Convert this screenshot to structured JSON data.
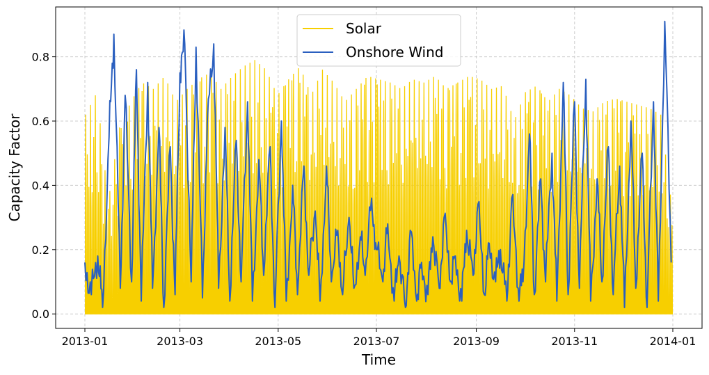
{
  "chart_data": {
    "type": "line",
    "title": "",
    "xlabel": "Time",
    "ylabel": "Capacity Factor",
    "x_range": [
      "2013-01-01",
      "2014-01-01"
    ],
    "ylim": [
      -0.045,
      0.955
    ],
    "grid": true,
    "legend_position": "top-center",
    "x_ticks": [
      {
        "date": "2013-01-01",
        "label": "2013-01"
      },
      {
        "date": "2013-03-01",
        "label": "2013-03"
      },
      {
        "date": "2013-05-01",
        "label": "2013-05"
      },
      {
        "date": "2013-07-01",
        "label": "2013-07"
      },
      {
        "date": "2013-09-01",
        "label": "2013-09"
      },
      {
        "date": "2013-11-01",
        "label": "2013-11"
      },
      {
        "date": "2014-01-01",
        "label": "2014-01"
      }
    ],
    "y_ticks": [
      {
        "value": 0.0,
        "label": "0.0"
      },
      {
        "value": 0.2,
        "label": "0.2"
      },
      {
        "value": 0.4,
        "label": "0.4"
      },
      {
        "value": 0.6,
        "label": "0.6"
      },
      {
        "value": 0.8,
        "label": "0.8"
      }
    ],
    "series": [
      {
        "name": "Solar",
        "color": "#f7cf00",
        "note_daily_peak_value": "hourly series; each day rises from 0 to the daily peak and back to 0",
        "x": [
          "2013-01-01",
          "2013-01-08",
          "2013-01-15",
          "2013-01-22",
          "2013-01-29",
          "2013-02-05",
          "2013-02-12",
          "2013-02-19",
          "2013-02-26",
          "2013-03-05",
          "2013-03-12",
          "2013-03-19",
          "2013-03-26",
          "2013-04-02",
          "2013-04-09",
          "2013-04-16",
          "2013-04-23",
          "2013-04-30",
          "2013-05-07",
          "2013-05-14",
          "2013-05-21",
          "2013-05-28",
          "2013-06-04",
          "2013-06-11",
          "2013-06-18",
          "2013-06-25",
          "2013-07-02",
          "2013-07-09",
          "2013-07-16",
          "2013-07-23",
          "2013-07-30",
          "2013-08-06",
          "2013-08-13",
          "2013-08-20",
          "2013-08-27",
          "2013-09-03",
          "2013-09-10",
          "2013-09-17",
          "2013-09-24",
          "2013-10-01",
          "2013-10-08",
          "2013-10-15",
          "2013-10-22",
          "2013-10-29",
          "2013-11-05",
          "2013-11-12",
          "2013-11-19",
          "2013-11-26",
          "2013-12-03",
          "2013-12-10",
          "2013-12-17",
          "2013-12-24",
          "2013-12-31"
        ],
        "values": [
          0.62,
          0.69,
          0.35,
          0.58,
          0.66,
          0.72,
          0.7,
          0.74,
          0.66,
          0.7,
          0.73,
          0.75,
          0.7,
          0.74,
          0.77,
          0.79,
          0.76,
          0.68,
          0.73,
          0.77,
          0.68,
          0.76,
          0.72,
          0.66,
          0.7,
          0.74,
          0.73,
          0.72,
          0.7,
          0.73,
          0.72,
          0.74,
          0.7,
          0.72,
          0.74,
          0.73,
          0.7,
          0.71,
          0.6,
          0.69,
          0.71,
          0.66,
          0.7,
          0.68,
          0.64,
          0.63,
          0.66,
          0.67,
          0.66,
          0.65,
          0.64,
          0.62,
          0.33
        ]
      },
      {
        "name": "Onshore Wind",
        "color": "#2a5fbf",
        "x": [
          "2013-01-01",
          "2013-01-05",
          "2013-01-09",
          "2013-01-12",
          "2013-01-16",
          "2013-01-19",
          "2013-01-23",
          "2013-01-26",
          "2013-01-30",
          "2013-02-02",
          "2013-02-05",
          "2013-02-09",
          "2013-02-12",
          "2013-02-16",
          "2013-02-19",
          "2013-02-23",
          "2013-02-26",
          "2013-03-01",
          "2013-03-04",
          "2013-03-08",
          "2013-03-11",
          "2013-03-15",
          "2013-03-18",
          "2013-03-22",
          "2013-03-25",
          "2013-03-29",
          "2013-04-01",
          "2013-04-05",
          "2013-04-08",
          "2013-04-12",
          "2013-04-15",
          "2013-04-19",
          "2013-04-22",
          "2013-04-26",
          "2013-04-29",
          "2013-05-03",
          "2013-05-06",
          "2013-05-10",
          "2013-05-13",
          "2013-05-17",
          "2013-05-20",
          "2013-05-24",
          "2013-05-27",
          "2013-05-31",
          "2013-06-03",
          "2013-06-07",
          "2013-06-10",
          "2013-06-14",
          "2013-06-17",
          "2013-06-21",
          "2013-06-24",
          "2013-06-28",
          "2013-07-01",
          "2013-07-05",
          "2013-07-08",
          "2013-07-12",
          "2013-07-15",
          "2013-07-19",
          "2013-07-22",
          "2013-07-26",
          "2013-07-29",
          "2013-08-02",
          "2013-08-05",
          "2013-08-09",
          "2013-08-12",
          "2013-08-16",
          "2013-08-19",
          "2013-08-23",
          "2013-08-26",
          "2013-08-30",
          "2013-09-02",
          "2013-09-06",
          "2013-09-09",
          "2013-09-13",
          "2013-09-16",
          "2013-09-20",
          "2013-09-23",
          "2013-09-27",
          "2013-09-30",
          "2013-10-04",
          "2013-10-07",
          "2013-10-11",
          "2013-10-14",
          "2013-10-18",
          "2013-10-21",
          "2013-10-25",
          "2013-10-28",
          "2013-11-01",
          "2013-11-04",
          "2013-11-08",
          "2013-11-11",
          "2013-11-15",
          "2013-11-18",
          "2013-11-22",
          "2013-11-25",
          "2013-11-29",
          "2013-12-02",
          "2013-12-06",
          "2013-12-09",
          "2013-12-13",
          "2013-12-16",
          "2013-12-20",
          "2013-12-23",
          "2013-12-27",
          "2013-12-31"
        ],
        "values": [
          0.16,
          0.06,
          0.18,
          0.02,
          0.55,
          0.87,
          0.08,
          0.68,
          0.1,
          0.76,
          0.04,
          0.72,
          0.08,
          0.58,
          0.02,
          0.52,
          0.06,
          0.75,
          0.84,
          0.1,
          0.83,
          0.05,
          0.6,
          0.84,
          0.08,
          0.58,
          0.04,
          0.54,
          0.1,
          0.66,
          0.04,
          0.48,
          0.12,
          0.52,
          0.02,
          0.6,
          0.04,
          0.4,
          0.06,
          0.46,
          0.12,
          0.32,
          0.04,
          0.46,
          0.1,
          0.26,
          0.06,
          0.3,
          0.08,
          0.24,
          0.12,
          0.36,
          0.2,
          0.1,
          0.28,
          0.04,
          0.18,
          0.02,
          0.26,
          0.04,
          0.16,
          0.06,
          0.24,
          0.08,
          0.3,
          0.1,
          0.18,
          0.04,
          0.26,
          0.12,
          0.34,
          0.06,
          0.22,
          0.1,
          0.2,
          0.04,
          0.36,
          0.08,
          0.1,
          0.56,
          0.06,
          0.42,
          0.1,
          0.5,
          0.04,
          0.72,
          0.06,
          0.66,
          0.08,
          0.73,
          0.04,
          0.42,
          0.1,
          0.52,
          0.06,
          0.46,
          0.02,
          0.6,
          0.08,
          0.5,
          0.02,
          0.66,
          0.04,
          0.91,
          0.16
        ]
      }
    ]
  }
}
